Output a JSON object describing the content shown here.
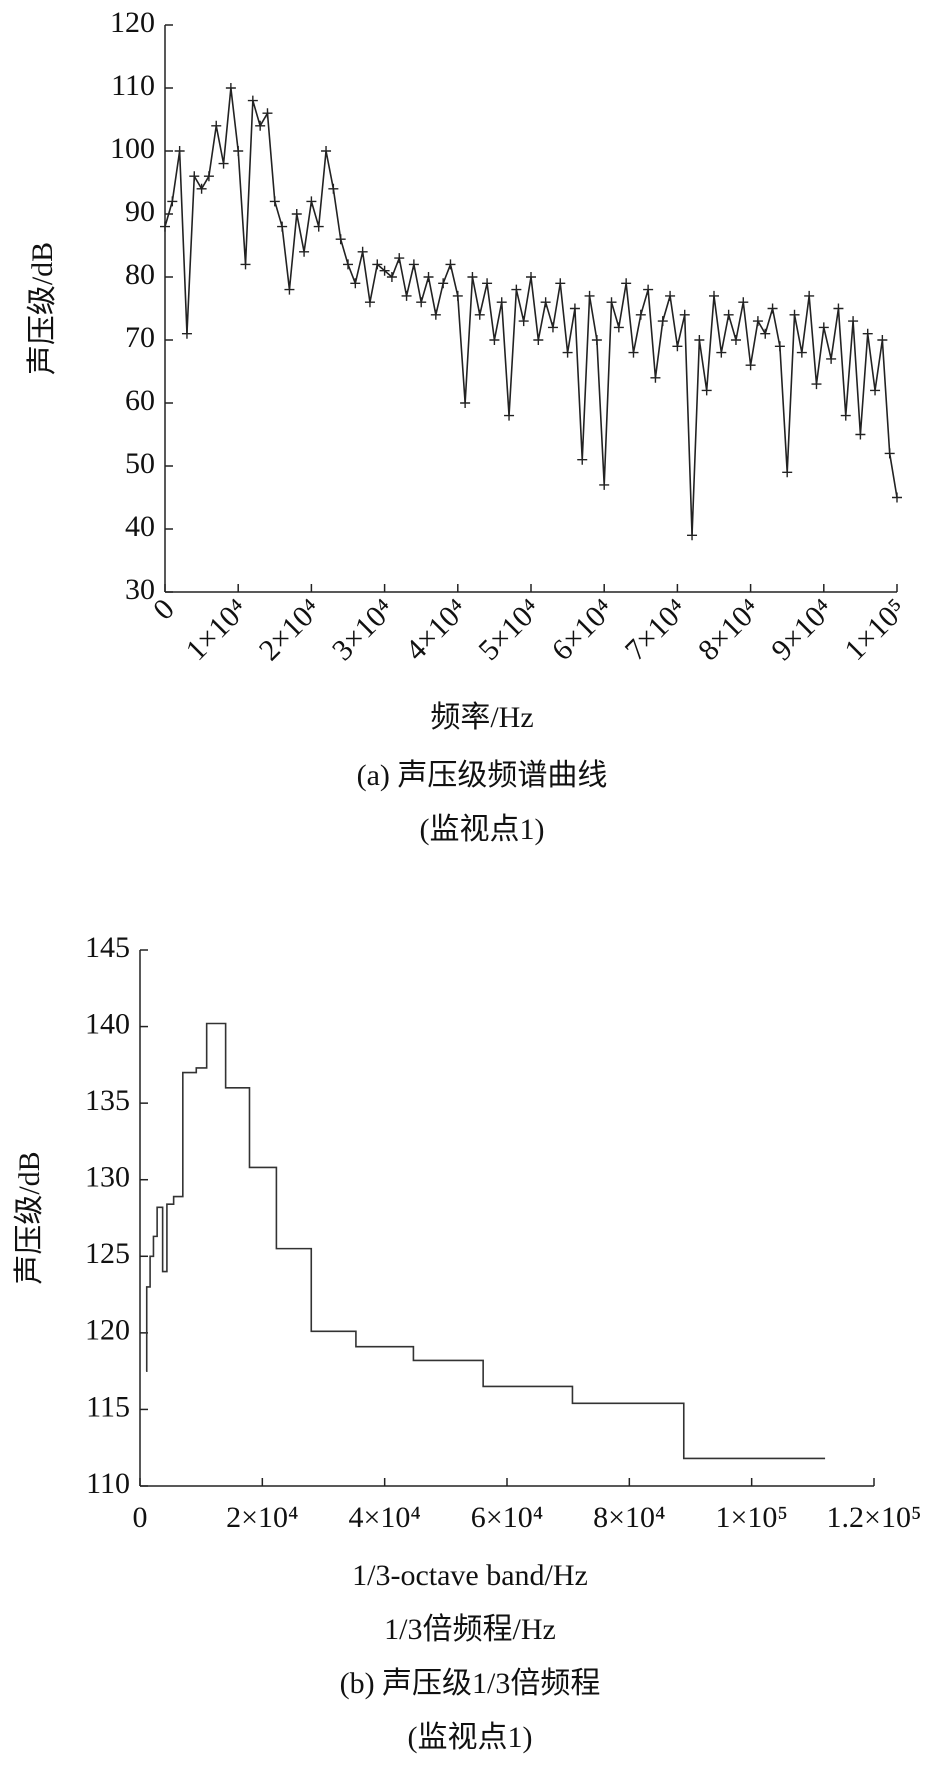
{
  "chart_data": [
    {
      "type": "line",
      "marker": "+",
      "color": "#222222",
      "ylabel": "声压级/dB",
      "xlabel": "频率/Hz",
      "caption": "(a) 声压级频谱曲线",
      "caption2": "(监视点1)",
      "x": [
        0,
        1000,
        2000,
        3000,
        4000,
        5000,
        6000,
        7000,
        8000,
        9000,
        10000,
        11000,
        12000,
        13000,
        14000,
        15000,
        16000,
        17000,
        18000,
        19000,
        20000,
        21000,
        22000,
        23000,
        24000,
        25000,
        26000,
        27000,
        28000,
        29000,
        30000,
        31000,
        32000,
        33000,
        34000,
        35000,
        36000,
        37000,
        38000,
        39000,
        40000,
        41000,
        42000,
        43000,
        44000,
        45000,
        46000,
        47000,
        48000,
        49000,
        50000,
        51000,
        52000,
        53000,
        54000,
        55000,
        56000,
        57000,
        58000,
        59000,
        60000,
        61000,
        62000,
        63000,
        64000,
        65000,
        66000,
        67000,
        68000,
        69000,
        70000,
        71000,
        72000,
        73000,
        74000,
        75000,
        76000,
        77000,
        78000,
        79000,
        80000,
        81000,
        82000,
        83000,
        84000,
        85000,
        86000,
        87000,
        88000,
        89000,
        90000,
        91000,
        92000,
        93000,
        94000,
        95000,
        96000,
        97000,
        98000,
        99000,
        100000
      ],
      "values": [
        88,
        92,
        100,
        71,
        96,
        94,
        96,
        104,
        98,
        110,
        100,
        82,
        108,
        104,
        106,
        92,
        88,
        78,
        90,
        84,
        92,
        88,
        100,
        94,
        86,
        82,
        79,
        84,
        76,
        82,
        81,
        80,
        83,
        77,
        82,
        76,
        80,
        74,
        79,
        82,
        77,
        60,
        80,
        74,
        79,
        70,
        76,
        58,
        78,
        73,
        80,
        70,
        76,
        72,
        79,
        68,
        75,
        51,
        77,
        70,
        47,
        76,
        72,
        79,
        68,
        74,
        78,
        64,
        73,
        77,
        69,
        74,
        39,
        70,
        62,
        77,
        68,
        74,
        70,
        76,
        66,
        73,
        71,
        75,
        69,
        49,
        74,
        68,
        77,
        63,
        72,
        67,
        75,
        58,
        73,
        55,
        71,
        62,
        70,
        52,
        45
      ],
      "xlim": [
        0,
        100000
      ],
      "xticks": [
        0,
        {
          "value": 10000,
          "label": "1×10⁴"
        },
        {
          "value": 20000,
          "label": "2×10⁴"
        },
        {
          "value": 30000,
          "label": "3×10⁴"
        },
        {
          "value": 40000,
          "label": "4×10⁴"
        },
        {
          "value": 50000,
          "label": "5×10⁴"
        },
        {
          "value": 60000,
          "label": "6×10⁴"
        },
        {
          "value": 70000,
          "label": "7×10⁴"
        },
        {
          "value": 80000,
          "label": "8×10⁴"
        },
        {
          "value": 90000,
          "label": "9×10⁴"
        },
        {
          "value": 100000,
          "label": "1×10⁵"
        }
      ],
      "ylim": [
        30,
        120
      ],
      "yticks": [
        30,
        40,
        50,
        60,
        70,
        80,
        90,
        100,
        110,
        120
      ]
    },
    {
      "type": "step",
      "color": "#333333",
      "ylabel": "声压级/dB",
      "xlabel": "1/3-octave band/Hz",
      "xlabel2": "1/3倍频程/Hz",
      "caption": "(b) 声压级1/3倍频程",
      "caption2": "(监视点1)",
      "x": [
        1000,
        1100,
        1650,
        2200,
        2800,
        3700,
        4400,
        5500,
        7000,
        9200,
        10900,
        14000,
        17900,
        22300,
        28000,
        35300,
        44700,
        56100,
        70700,
        88900,
        112000
      ],
      "values": [
        117.5,
        123,
        125,
        126.3,
        128.2,
        124,
        128.4,
        128.9,
        137,
        137.3,
        140.2,
        136,
        130.8,
        125.5,
        120.1,
        119.1,
        118.2,
        116.5,
        115.4,
        111.8,
        111.8
      ],
      "xlim": [
        0,
        120000
      ],
      "xticks": [
        0,
        {
          "value": 20000,
          "label": "2×10⁴"
        },
        {
          "value": 40000,
          "label": "4×10⁴"
        },
        {
          "value": 60000,
          "label": "6×10⁴"
        },
        {
          "value": 80000,
          "label": "8×10⁴"
        },
        {
          "value": 100000,
          "label": "1×10⁵"
        },
        {
          "value": 120000,
          "label": "1.2×10⁵"
        }
      ],
      "ylim": [
        110,
        145
      ],
      "yticks": [
        110,
        115,
        120,
        125,
        130,
        135,
        140,
        145
      ]
    }
  ]
}
